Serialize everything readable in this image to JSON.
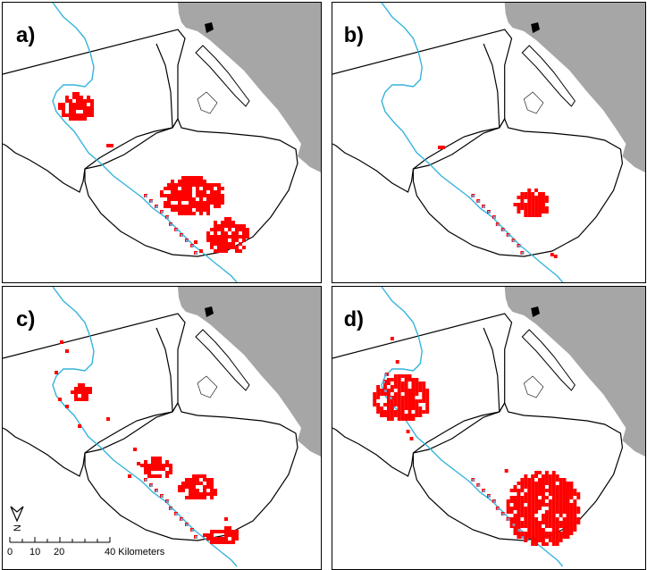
{
  "figure": {
    "panels": [
      {
        "id": "a",
        "label": "a)"
      },
      {
        "id": "b",
        "label": "b)"
      },
      {
        "id": "c",
        "label": "c)"
      },
      {
        "id": "d",
        "label": "d)"
      }
    ],
    "north_arrow": {
      "label": "N"
    },
    "scale_bar": {
      "ticks": [
        "0",
        "10",
        "20",
        "40 Kilometers"
      ]
    },
    "colors": {
      "land": "#a6a6a6",
      "habitat": "#ff0000",
      "pipeline": "#8c8fb8",
      "river": "#34b4dc",
      "boundary": "#000000"
    }
  }
}
